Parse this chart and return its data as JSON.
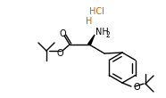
{
  "bg_color": "#ffffff",
  "line_color": "#000000",
  "text_color": "#000000",
  "hcl_color": "#cc6600",
  "fig_width": 1.86,
  "fig_height": 1.1,
  "dpi": 100,
  "bond_lw": 1.0,
  "ring_lw": 1.0,
  "hcl_text": "HCl",
  "h_text": "H",
  "nh2_text": "NH",
  "sub2_text": "2",
  "o_text": "O"
}
